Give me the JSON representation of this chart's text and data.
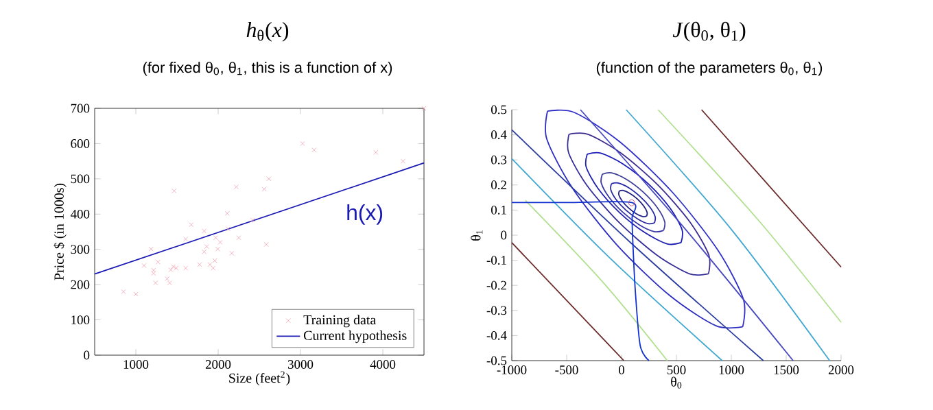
{
  "chart_data": [
    {
      "type": "scatter",
      "title": "*h*$_{θ}$(*x*)",
      "subtitle": "(for fixed θ$_{0}$, θ$_{1}$, this is a function of x)",
      "xlabel": "Size (feet$^{2}$)",
      "ylabel": "Price $ (in 1000s)",
      "xlim": [
        500,
        4500
      ],
      "ylim": [
        0,
        700
      ],
      "xticks": [
        1000,
        2000,
        3000,
        4000
      ],
      "yticks": [
        0,
        100,
        200,
        300,
        400,
        500,
        600,
        700
      ],
      "legend": "bottom right",
      "annotations": [
        "h(x)"
      ],
      "series": [
        {
          "name": "Training data",
          "type": "scatter",
          "marker": "cross",
          "color": "#f0a0b0",
          "x": [
            850,
            1000,
            1100,
            1185,
            1215,
            1240,
            1270,
            1215,
            1465,
            1425,
            1455,
            1410,
            1380,
            1490,
            1605,
            1605,
            1673,
            1775,
            1830,
            1830,
            1860,
            1900,
            1940,
            1960,
            1970,
            2025,
            1995,
            2120,
            2110,
            2165,
            2220,
            2250,
            2420,
            2560,
            2615,
            2585,
            3025,
            3165,
            3915,
            4245,
            4500
          ],
          "values": [
            180,
            173,
            254,
            301,
            241,
            205,
            264,
            232,
            466,
            242,
            251,
            205,
            217,
            247,
            329,
            247,
            370,
            257,
            352,
            293,
            308,
            257,
            247,
            268,
            333,
            320,
            301,
            358,
            402,
            289,
            477,
            333,
            383,
            471,
            500,
            314,
            600,
            582,
            575,
            550,
            700
          ]
        },
        {
          "name": "Current hypothesis",
          "type": "line",
          "marker": "none",
          "color": "#1a1ab4",
          "x": [
            500,
            4500
          ],
          "values": [
            230,
            545
          ]
        }
      ]
    },
    {
      "type": "line",
      "title": "*J*(θ$_{0}$, θ$_{1}$)",
      "subtitle": "(function of the parameters θ$_{0}$, θ$_{1}$)",
      "xlabel": "θ$_{0}$",
      "ylabel": "θ$_{1}$",
      "xlim": [
        -1000,
        2000
      ],
      "ylim": [
        -0.5,
        0.5
      ],
      "xticks": [
        -1000,
        -500,
        0,
        500,
        1000,
        1500,
        2000
      ],
      "yticks": [
        -0.5,
        -0.4,
        -0.3,
        -0.2,
        -0.1,
        0,
        0.1,
        0.2,
        0.3,
        0.4,
        0.5
      ],
      "series": [
        {
          "color": "#1c1c7c",
          "x": [
            -21,
            17,
            77,
            145,
            202,
            233,
            229
          ],
          "values": [
            0.176,
            0.178,
            0.166,
            0.144,
            0.116,
            0.091,
            0.076
          ]
        },
        {
          "color": "#222288",
          "x": [
            229,
            192,
            131,
            63,
            6,
            -25,
            -21
          ],
          "values": [
            0.076,
            0.074,
            0.086,
            0.109,
            0.136,
            0.161,
            0.176
          ]
        },
        {
          "color": "#2828a8",
          "x": [
            -92,
            -33,
            62,
            169,
            258,
            306,
            300
          ],
          "values": [
            0.205,
            0.208,
            0.19,
            0.154,
            0.112,
            0.074,
            0.049
          ]
        },
        {
          "color": "#2a2a9e",
          "x": [
            300,
            241,
            146,
            39,
            -50,
            -98,
            -92
          ],
          "values": [
            0.049,
            0.046,
            0.065,
            0.1,
            0.142,
            0.181,
            0.205
          ]
        },
        {
          "color": "#40409a",
          "x": [
            -175,
            -91,
            46,
            199,
            325,
            393,
            383
          ],
          "values": [
            0.243,
            0.248,
            0.222,
            0.171,
            0.11,
            0.054,
            0.019
          ]
        },
        {
          "color": "#3636a4",
          "x": [
            383,
            299,
            162,
            10,
            -117,
            -185,
            -175
          ],
          "values": [
            0.019,
            0.014,
            0.041,
            0.092,
            0.153,
            0.208,
            0.243
          ]
        },
        {
          "color": "#1a1ab8",
          "x": [
            -313,
            -189,
            16,
            247,
            443,
            551,
            542
          ],
          "values": [
            0.323,
            0.327,
            0.283,
            0.203,
            0.107,
            0.022,
            -0.03
          ]
        },
        {
          "color": "#2020b0",
          "x": [
            542,
            418,
            213,
            -18,
            -214,
            -322,
            -313
          ],
          "values": [
            -0.03,
            -0.035,
            0.01,
            0.09,
            0.186,
            0.271,
            0.323
          ]
        },
        {
          "color": "#3c2c90",
          "x": [
            -479,
            -306,
            -8,
            333,
            627,
            795,
            792
          ],
          "values": [
            0.402,
            0.402,
            0.328,
            0.199,
            0.05,
            -0.079,
            -0.154
          ]
        },
        {
          "color": "#342c98",
          "x": [
            792,
            618,
            321,
            -21,
            -315,
            -482,
            -479
          ],
          "values": [
            -0.154,
            -0.154,
            -0.079,
            0.05,
            0.198,
            0.328,
            0.402
          ]
        },
        {
          "color": "#3030c8",
          "x": [
            -675,
            -431,
            -13,
            465,
            876,
            1110,
            1104
          ],
          "values": [
            0.494,
            0.489,
            0.371,
            0.17,
            -0.059,
            -0.255,
            -0.365
          ]
        },
        {
          "color": "#2c2cc0",
          "x": [
            1104,
            860,
            443,
            -36,
            -447,
            -681,
            -675
          ],
          "values": [
            -0.365,
            -0.361,
            -0.242,
            -0.042,
            0.187,
            0.383,
            0.494
          ]
        },
        {
          "color": "#2a3ca0",
          "x": [
            -1000,
            83,
            1292
          ],
          "values": [
            0.42,
            -0.03,
            -0.5
          ]
        },
        {
          "color": "#4848c0",
          "x": [
            -375,
            583,
            1563
          ],
          "values": [
            0.5,
            0.023,
            -0.5
          ]
        },
        {
          "color": "#40a8d0",
          "x": [
            -1000,
            -83,
            917
          ],
          "values": [
            0.305,
            -0.101,
            -0.5
          ]
        },
        {
          "color": "#40a8d0",
          "x": [
            42,
            1000,
            1896
          ],
          "values": [
            0.5,
            0.023,
            -0.5
          ]
        },
        {
          "color": "#b0e090",
          "x": [
            -875,
            -167,
            417
          ],
          "values": [
            0.138,
            -0.189,
            -0.5
          ]
        },
        {
          "color": "#b0e090",
          "x": [
            333,
            1250,
            2000
          ],
          "values": [
            0.5,
            0.058,
            -0.347
          ]
        },
        {
          "color": "#6b2a2a",
          "x": [
            -1000,
            21
          ],
          "values": [
            -0.03,
            -0.5
          ]
        },
        {
          "color": "#6b2a2a",
          "x": [
            729,
            2000
          ],
          "values": [
            0.5,
            -0.127
          ]
        },
        {
          "color": "#1030d0",
          "x": [
            -1000,
            -500,
            92,
            96,
            100,
            125,
            170,
            250
          ],
          "values": [
            0.13,
            0.13,
            0.13,
            0.07,
            0.0,
            -0.22,
            -0.44,
            -0.5
          ]
        },
        {
          "type": "scatter",
          "marker": "circle",
          "color": "#cc3366",
          "x": [
            92
          ],
          "values": [
            0.129
          ]
        }
      ]
    }
  ]
}
